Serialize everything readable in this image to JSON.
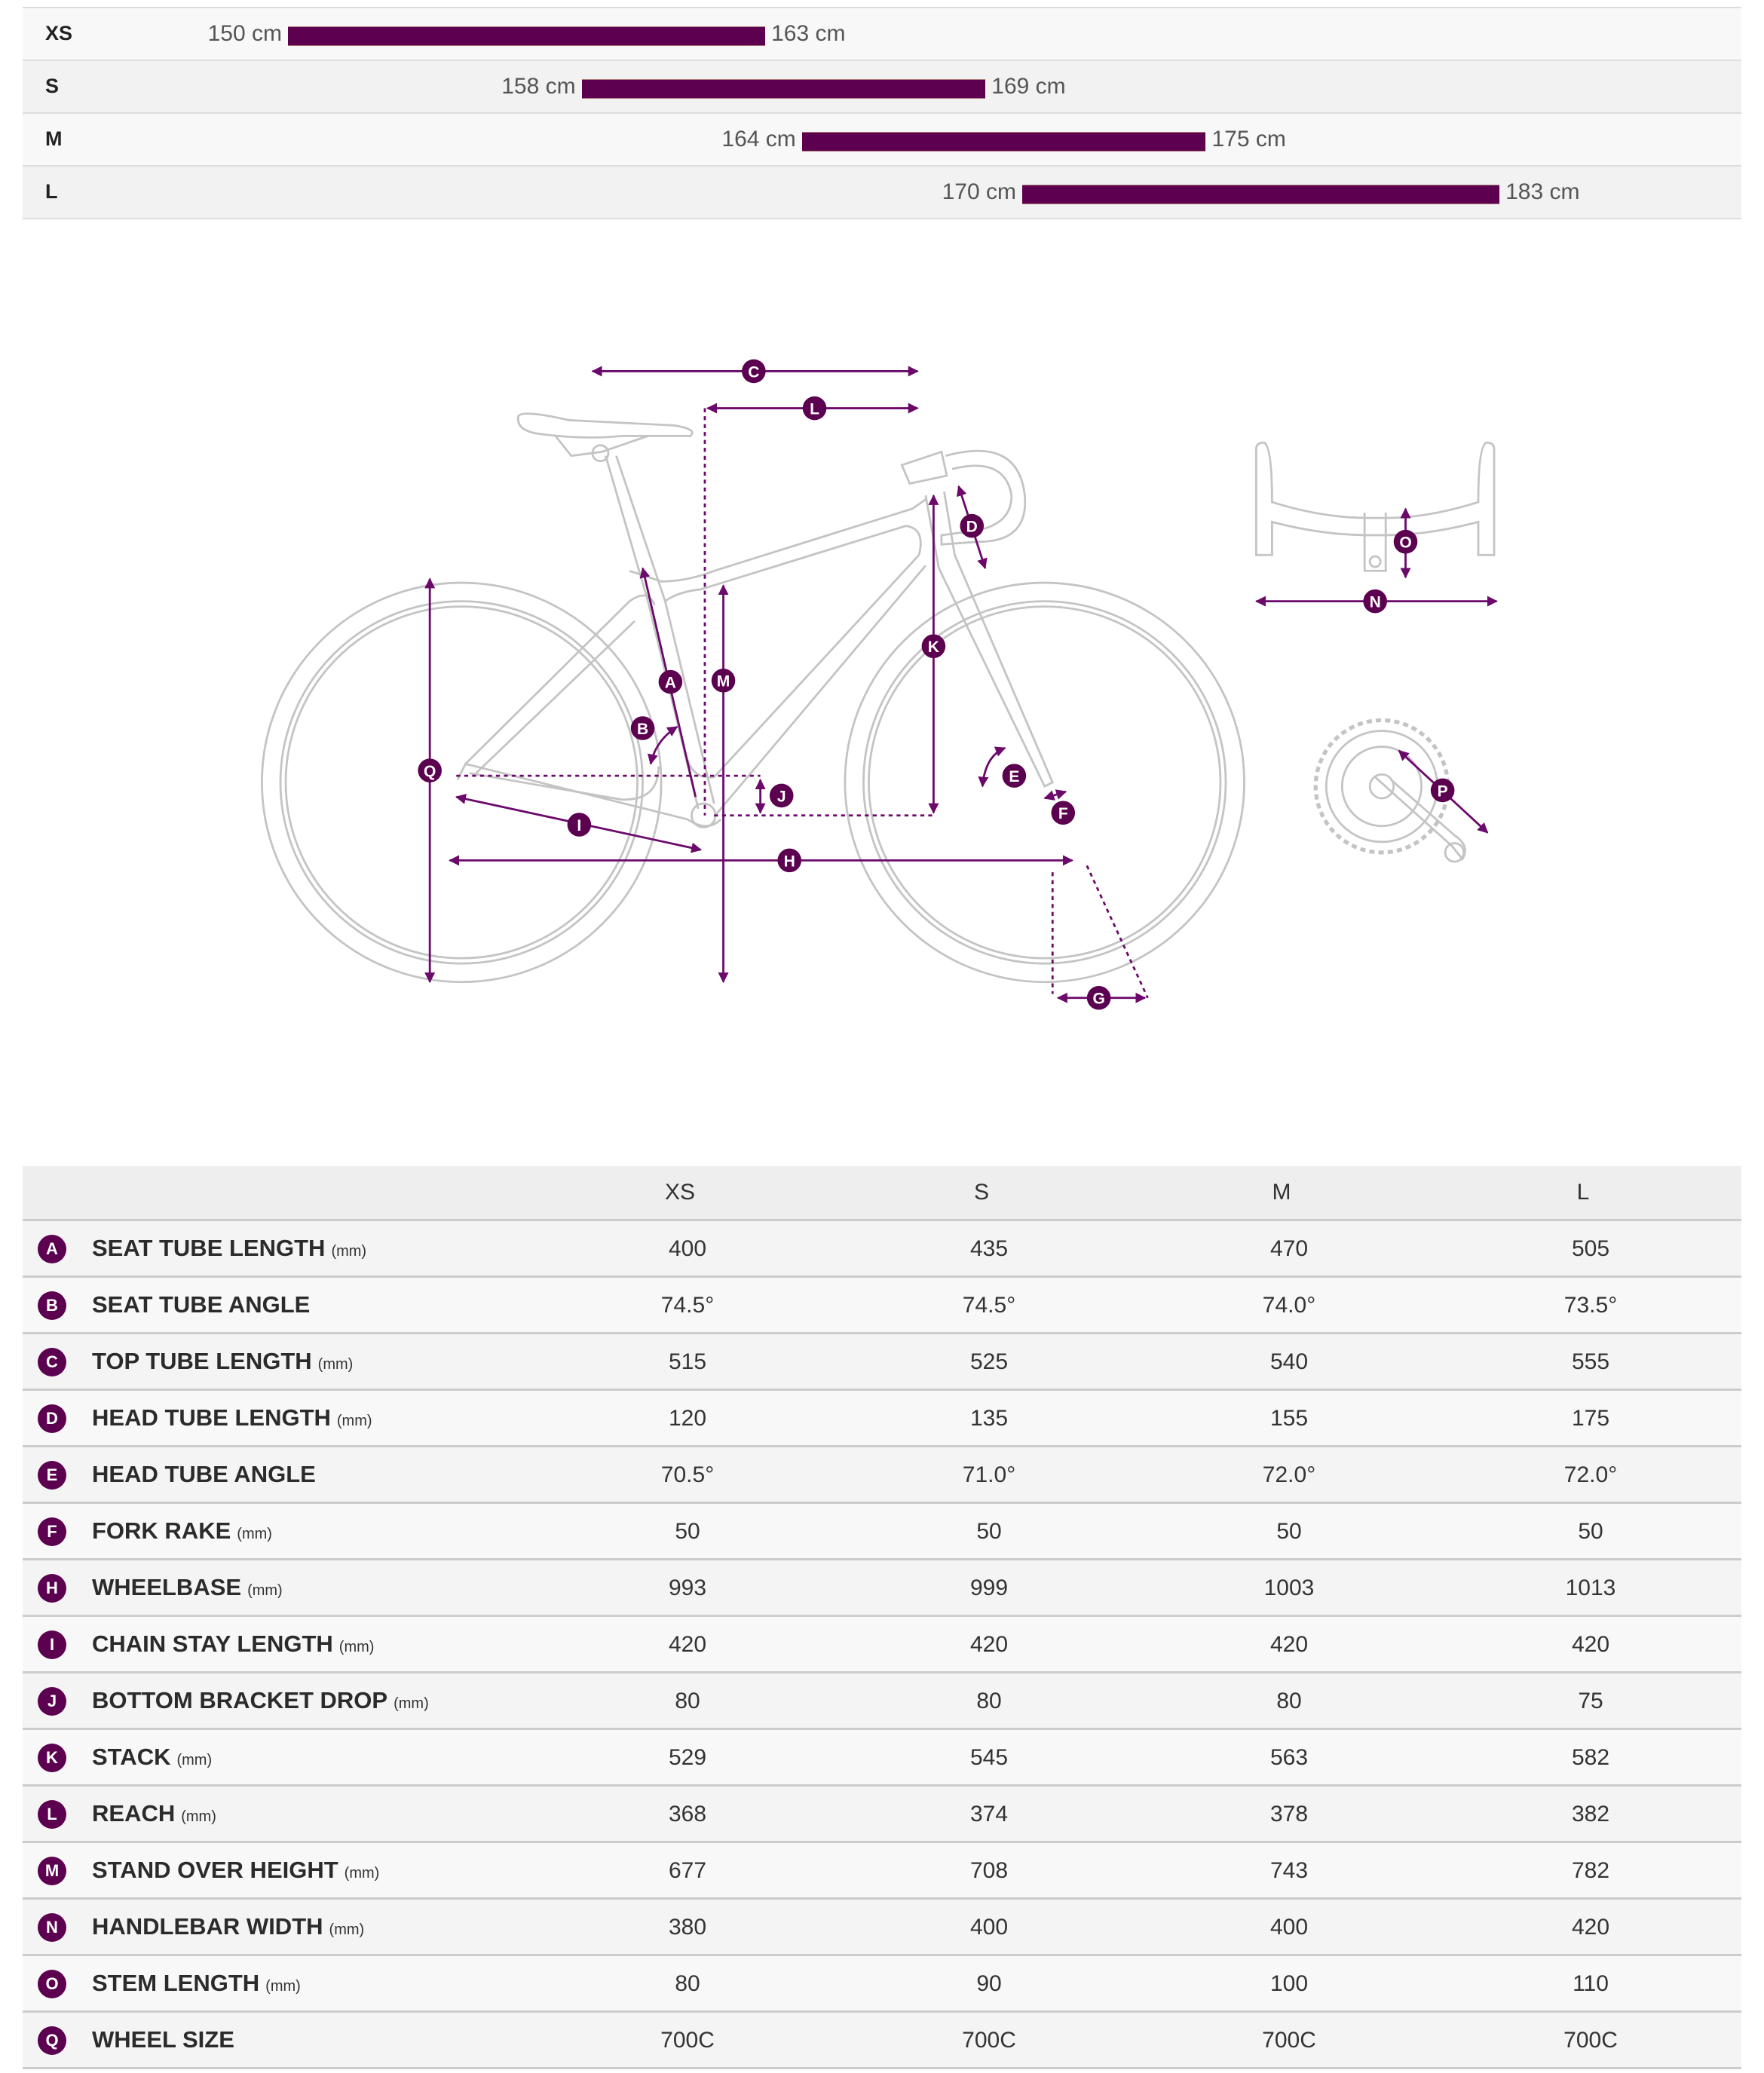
{
  "size_chart": {
    "unit": "cm",
    "rows": [
      {
        "size": "XS",
        "min": "150 cm",
        "max": "163 cm",
        "min_cm": 150,
        "max_cm": 163
      },
      {
        "size": "S",
        "min": "158 cm",
        "max": "169 cm",
        "min_cm": 158,
        "max_cm": 169
      },
      {
        "size": "M",
        "min": "164 cm",
        "max": "175 cm",
        "min_cm": 164,
        "max_cm": 175
      },
      {
        "size": "L",
        "min": "170 cm",
        "max": "183 cm",
        "min_cm": 170,
        "max_cm": 183
      }
    ]
  },
  "diagram": {
    "labels": {
      "A": "A",
      "B": "B",
      "C": "C",
      "D": "D",
      "E": "E",
      "F": "F",
      "G": "G",
      "H": "H",
      "I": "I",
      "J": "J",
      "K": "K",
      "L": "L",
      "M": "M",
      "N": "N",
      "O": "O",
      "P": "P",
      "Q": "Q"
    }
  },
  "colors": {
    "accent": "#5c0050",
    "line": "#c4c4c4",
    "arrow": "#6b0a6b"
  },
  "geometry_table": {
    "columns": [
      "XS",
      "S",
      "M",
      "L"
    ],
    "rows": [
      {
        "key": "A",
        "name": "SEAT TUBE LENGTH",
        "unit": "(mm)",
        "values": [
          "400",
          "435",
          "470",
          "505"
        ]
      },
      {
        "key": "B",
        "name": "SEAT TUBE ANGLE",
        "unit": "",
        "values": [
          "74.5°",
          "74.5°",
          "74.0°",
          "73.5°"
        ]
      },
      {
        "key": "C",
        "name": "TOP TUBE LENGTH",
        "unit": "(mm)",
        "values": [
          "515",
          "525",
          "540",
          "555"
        ]
      },
      {
        "key": "D",
        "name": "HEAD TUBE LENGTH",
        "unit": "(mm)",
        "values": [
          "120",
          "135",
          "155",
          "175"
        ]
      },
      {
        "key": "E",
        "name": "HEAD TUBE ANGLE",
        "unit": "",
        "values": [
          "70.5°",
          "71.0°",
          "72.0°",
          "72.0°"
        ]
      },
      {
        "key": "F",
        "name": "FORK RAKE",
        "unit": "(mm)",
        "values": [
          "50",
          "50",
          "50",
          "50"
        ]
      },
      {
        "key": "H",
        "name": "WHEELBASE",
        "unit": "(mm)",
        "values": [
          "993",
          "999",
          "1003",
          "1013"
        ]
      },
      {
        "key": "I",
        "name": "CHAIN STAY LENGTH",
        "unit": "(mm)",
        "values": [
          "420",
          "420",
          "420",
          "420"
        ]
      },
      {
        "key": "J",
        "name": "BOTTOM BRACKET DROP",
        "unit": "(mm)",
        "values": [
          "80",
          "80",
          "80",
          "75"
        ]
      },
      {
        "key": "K",
        "name": "STACK",
        "unit": "(mm)",
        "values": [
          "529",
          "545",
          "563",
          "582"
        ]
      },
      {
        "key": "L",
        "name": "REACH",
        "unit": "(mm)",
        "values": [
          "368",
          "374",
          "378",
          "382"
        ]
      },
      {
        "key": "M",
        "name": "STAND OVER HEIGHT",
        "unit": "(mm)",
        "values": [
          "677",
          "708",
          "743",
          "782"
        ]
      },
      {
        "key": "N",
        "name": "HANDLEBAR WIDTH",
        "unit": "(mm)",
        "values": [
          "380",
          "400",
          "400",
          "420"
        ]
      },
      {
        "key": "O",
        "name": "STEM LENGTH",
        "unit": "(mm)",
        "values": [
          "80",
          "90",
          "100",
          "110"
        ]
      },
      {
        "key": "Q",
        "name": "WHEEL SIZE",
        "unit": "",
        "values": [
          "700C",
          "700C",
          "700C",
          "700C"
        ]
      }
    ]
  }
}
